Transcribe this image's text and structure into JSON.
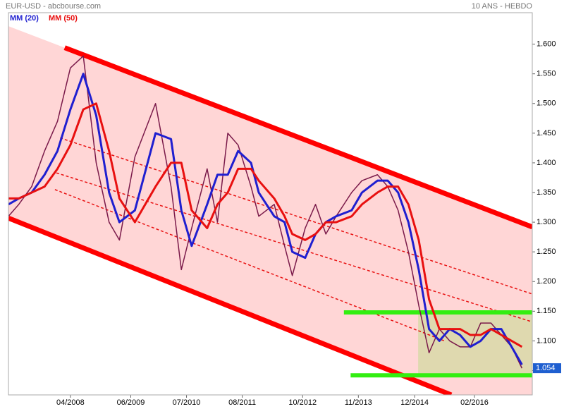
{
  "chart_data": {
    "type": "line",
    "title": "EUR-USD - abcbourse.com",
    "subtitle": "10 ANS - HEBDO",
    "x": [
      2007.05,
      2007.25,
      2007.5,
      2007.75,
      2008.0,
      2008.25,
      2008.5,
      2008.75,
      2009.0,
      2009.2,
      2009.5,
      2009.9,
      2010.2,
      2010.4,
      2010.6,
      2010.9,
      2011.1,
      2011.3,
      2011.5,
      2011.75,
      2011.9,
      2012.2,
      2012.4,
      2012.55,
      2012.8,
      2013.0,
      2013.2,
      2013.4,
      2013.7,
      2013.9,
      2014.2,
      2014.4,
      2014.6,
      2014.8,
      2015.0,
      2015.2,
      2015.4,
      2015.6,
      2015.8,
      2016.0,
      2016.2,
      2016.4,
      2016.6,
      2016.8,
      2017.0
    ],
    "price": {
      "color": "#7a1a4a",
      "values": [
        1.31,
        1.33,
        1.36,
        1.42,
        1.47,
        1.56,
        1.58,
        1.4,
        1.3,
        1.27,
        1.41,
        1.5,
        1.36,
        1.22,
        1.29,
        1.39,
        1.3,
        1.45,
        1.43,
        1.36,
        1.31,
        1.33,
        1.26,
        1.21,
        1.29,
        1.33,
        1.28,
        1.31,
        1.35,
        1.37,
        1.38,
        1.36,
        1.32,
        1.25,
        1.16,
        1.08,
        1.12,
        1.1,
        1.09,
        1.09,
        1.13,
        1.13,
        1.11,
        1.09,
        1.054
      ]
    },
    "series": [
      {
        "name": "MM (20)",
        "color": "#1f1fd0",
        "values": [
          1.33,
          1.34,
          1.35,
          1.38,
          1.42,
          1.49,
          1.55,
          1.48,
          1.35,
          1.3,
          1.32,
          1.45,
          1.44,
          1.32,
          1.26,
          1.33,
          1.38,
          1.38,
          1.42,
          1.4,
          1.35,
          1.31,
          1.3,
          1.25,
          1.24,
          1.28,
          1.3,
          1.31,
          1.32,
          1.35,
          1.37,
          1.37,
          1.35,
          1.3,
          1.22,
          1.12,
          1.1,
          1.12,
          1.11,
          1.09,
          1.1,
          1.12,
          1.12,
          1.09,
          1.06
        ]
      },
      {
        "name": "MM (50)",
        "color": "#e81010",
        "values": [
          1.34,
          1.34,
          1.35,
          1.36,
          1.39,
          1.43,
          1.49,
          1.5,
          1.42,
          1.34,
          1.3,
          1.36,
          1.4,
          1.4,
          1.32,
          1.29,
          1.33,
          1.35,
          1.39,
          1.39,
          1.37,
          1.34,
          1.31,
          1.28,
          1.27,
          1.28,
          1.3,
          1.3,
          1.31,
          1.33,
          1.35,
          1.36,
          1.36,
          1.33,
          1.27,
          1.17,
          1.12,
          1.12,
          1.12,
          1.11,
          1.11,
          1.12,
          1.11,
          1.1,
          1.09
        ]
      }
    ],
    "trend_lines": [
      {
        "color": "#ff0000",
        "width": 7,
        "dash": false,
        "points": [
          [
            2008.14,
            1.594
          ],
          [
            2017.2,
            1.292
          ]
        ]
      },
      {
        "color": "#ff0000",
        "width": 7,
        "dash": false,
        "points": [
          [
            2007.05,
            1.307
          ],
          [
            2015.63,
            1.009
          ]
        ]
      },
      {
        "color": "#e81010",
        "width": 1.5,
        "dash": true,
        "points": [
          [
            2008.05,
            1.442
          ],
          [
            2017.2,
            1.179
          ]
        ]
      },
      {
        "color": "#e81010",
        "width": 1.5,
        "dash": true,
        "points": [
          [
            2007.98,
            1.383
          ],
          [
            2017.2,
            1.132
          ]
        ]
      },
      {
        "color": "#e81010",
        "width": 1.5,
        "dash": true,
        "points": [
          [
            2007.95,
            1.355
          ],
          [
            2015.5,
            1.1
          ]
        ]
      },
      {
        "color": "#33ee11",
        "width": 6,
        "dash": false,
        "points": [
          [
            2013.55,
            1.148
          ],
          [
            2017.2,
            1.148
          ]
        ]
      },
      {
        "color": "#33ee11",
        "width": 6,
        "dash": false,
        "points": [
          [
            2013.68,
            1.042
          ],
          [
            2017.2,
            1.042
          ]
        ]
      }
    ],
    "xlim": [
      2007.05,
      2017.2
    ],
    "ylim": [
      1.009,
      1.653
    ],
    "xticks": [
      {
        "value": 2008.25,
        "label": "04/2008"
      },
      {
        "value": 2009.42,
        "label": "06/2009"
      },
      {
        "value": 2010.5,
        "label": "07/2010"
      },
      {
        "value": 2011.58,
        "label": "08/2011"
      },
      {
        "value": 2012.75,
        "label": "10/2012"
      },
      {
        "value": 2013.83,
        "label": "11/2013"
      },
      {
        "value": 2014.92,
        "label": "12/2014"
      },
      {
        "value": 2016.08,
        "label": "02/2016"
      }
    ],
    "yticks": [
      {
        "value": 1.6,
        "label": "1.600"
      },
      {
        "value": 1.55,
        "label": "1.550"
      },
      {
        "value": 1.5,
        "label": "1.500"
      },
      {
        "value": 1.45,
        "label": "1.450"
      },
      {
        "value": 1.4,
        "label": "1.400"
      },
      {
        "value": 1.35,
        "label": "1.350"
      },
      {
        "value": 1.3,
        "label": "1.300"
      },
      {
        "value": 1.25,
        "label": "1.250"
      },
      {
        "value": 1.2,
        "label": "1.200"
      },
      {
        "value": 1.15,
        "label": "1.150"
      },
      {
        "value": 1.1,
        "label": "1.100"
      },
      {
        "value": 1.05,
        "label": "1.050"
      }
    ]
  }
}
